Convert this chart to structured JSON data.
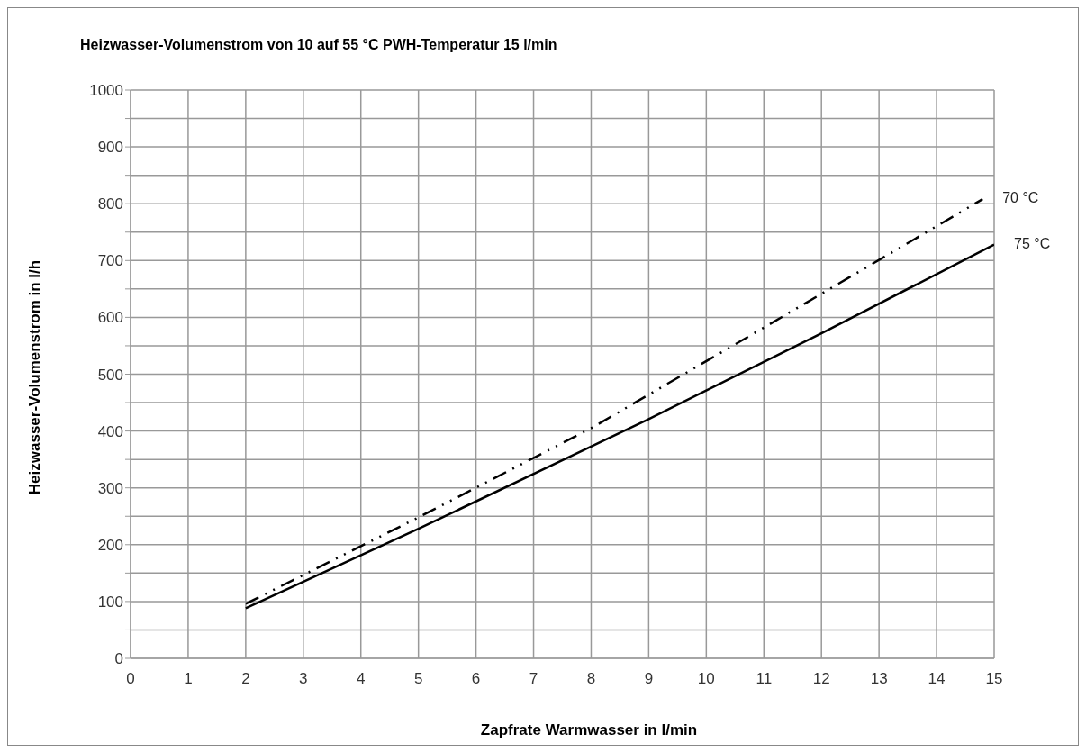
{
  "chart_data": {
    "type": "line",
    "title": "Heizwasser-Volumenstrom von 10 auf 55 °C PWH-Temperatur 15 l/min",
    "xlabel": "Zapfrate Warmwasser in l/min",
    "ylabel": "Heizwasser-Volumenstrom in l/h",
    "series": [
      {
        "name": "70 °C",
        "color": "#000000",
        "line_style": "dashed",
        "x": [
          2,
          5,
          8,
          11,
          14.8
        ],
        "values": [
          96,
          248,
          405,
          582,
          808
        ]
      },
      {
        "name": "75 °C",
        "color": "#000000",
        "line_style": "solid",
        "x": [
          2,
          5,
          9,
          12,
          15
        ],
        "values": [
          88,
          228,
          421,
          572,
          728
        ]
      }
    ],
    "xlim": [
      0,
      15
    ],
    "xticks": [
      0,
      1,
      2,
      3,
      4,
      5,
      6,
      7,
      8,
      9,
      10,
      11,
      12,
      13,
      14,
      15
    ],
    "ylim": [
      0,
      1000
    ],
    "yticks": [
      0,
      {
        "value": 50,
        "label": null
      },
      100,
      {
        "value": 150,
        "label": null
      },
      200,
      {
        "value": 250,
        "label": null
      },
      300,
      {
        "value": 350,
        "label": null
      },
      400,
      {
        "value": 450,
        "label": null
      },
      500,
      {
        "value": 550,
        "label": null
      },
      600,
      {
        "value": 650,
        "label": null
      },
      700,
      {
        "value": 750,
        "label": null
      },
      800,
      {
        "value": 850,
        "label": null
      },
      900,
      {
        "value": 950,
        "label": null
      },
      1000
    ],
    "grid": true,
    "legend": false,
    "marker": "none"
  }
}
